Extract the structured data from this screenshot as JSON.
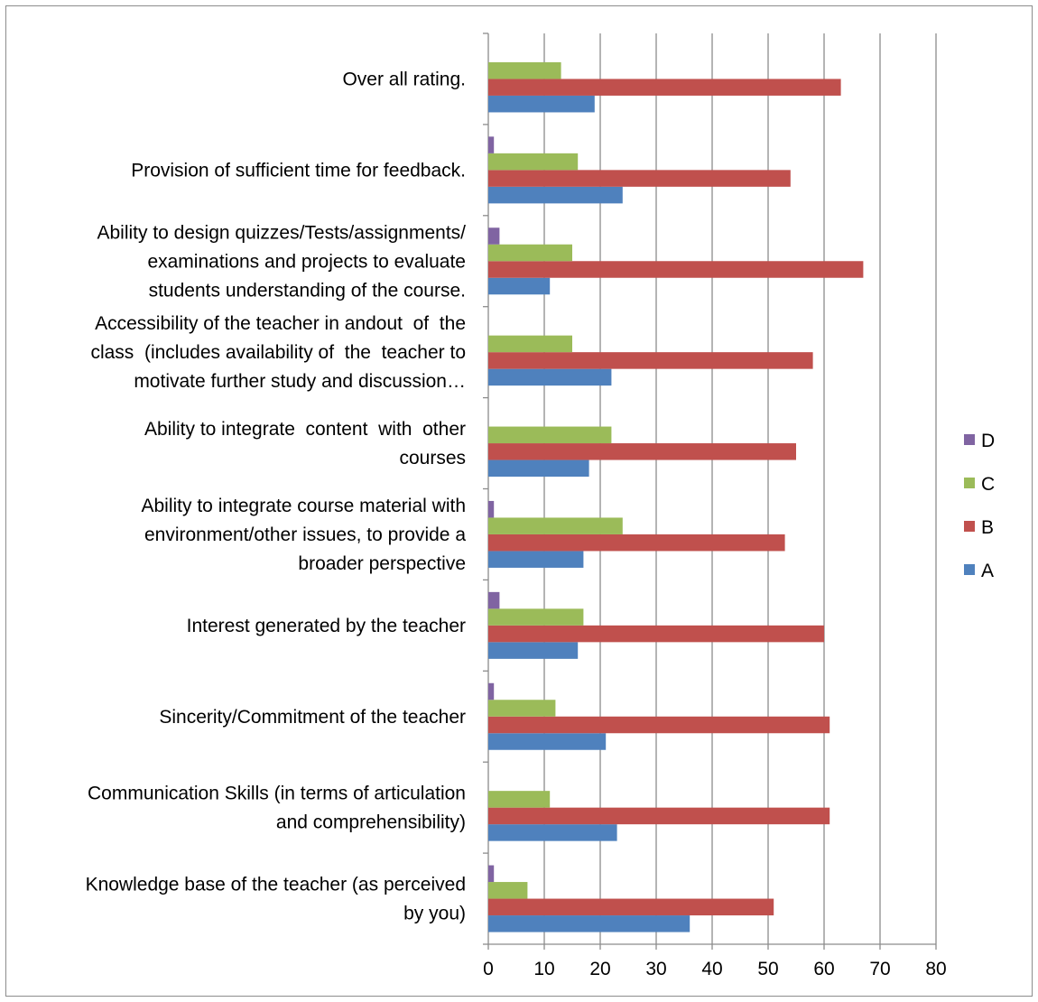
{
  "chart_data": {
    "type": "bar",
    "orientation": "horizontal",
    "categories": [
      "Knowledge base of the teacher (as perceived by you)",
      "Communication Skills (in terms of articulation and comprehensibility)",
      "Sincerity/Commitment of the teacher",
      "Interest generated by the teacher",
      "Ability to integrate course material with environment/other issues, to provide a broader perspective",
      "Ability to integrate  content  with  other courses",
      "Accessibility of the teacher in andout  of  the class  (includes availability of  the  teacher to motivate further study and discussion…",
      "Ability to design quizzes/Tests/assignments/ examinations and projects to evaluate students understanding of the course.",
      "Provision of sufficient time for feedback.",
      "Over all rating."
    ],
    "category_label_lines": [
      [
        "Knowledge base of the teacher (as perceived",
        "by you)"
      ],
      [
        "Communication Skills (in terms of articulation",
        "and comprehensibility)"
      ],
      [
        "Sincerity/Commitment of the teacher"
      ],
      [
        "Interest generated by the teacher"
      ],
      [
        "Ability to integrate course material with",
        "environment/other issues, to provide a",
        "broader perspective"
      ],
      [
        "Ability to integrate  content  with  other",
        "courses"
      ],
      [
        "Accessibility of the teacher in andout  of  the",
        "class  (includes availability of  the  teacher to",
        "motivate further study and discussion…"
      ],
      [
        "Ability to design quizzes/Tests/assignments/",
        "examinations and projects to evaluate",
        "students understanding of the course."
      ],
      [
        "Provision of sufficient time for feedback."
      ],
      [
        "Over all rating."
      ]
    ],
    "series": [
      {
        "name": "A",
        "color": "#4f81bd",
        "values": [
          36,
          23,
          21,
          16,
          17,
          18,
          22,
          11,
          24,
          19
        ]
      },
      {
        "name": "B",
        "color": "#c0504d",
        "values": [
          51,
          61,
          61,
          60,
          53,
          55,
          58,
          67,
          54,
          63
        ]
      },
      {
        "name": "C",
        "color": "#9bbb59",
        "values": [
          7,
          11,
          12,
          17,
          24,
          22,
          15,
          15,
          16,
          13
        ]
      },
      {
        "name": "D",
        "color": "#8064a2",
        "values": [
          1,
          0,
          1,
          2,
          1,
          0,
          0,
          2,
          1,
          0
        ]
      }
    ],
    "xlim": [
      0,
      80
    ],
    "xticks": [
      0,
      10,
      20,
      30,
      40,
      50,
      60,
      70,
      80
    ],
    "grid": true,
    "legend_position": "right",
    "legend_order": [
      "D",
      "C",
      "B",
      "A"
    ],
    "title": "",
    "xlabel": "",
    "ylabel": ""
  }
}
